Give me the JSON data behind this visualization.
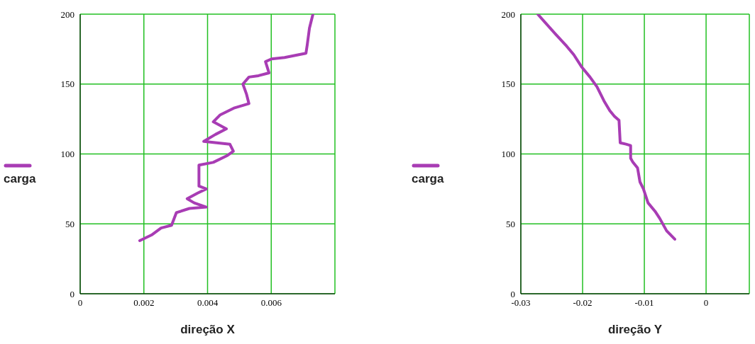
{
  "chart_data": [
    {
      "type": "line",
      "xlabel": "direção X",
      "xlim": [
        0,
        0.008
      ],
      "xticks": [
        0,
        0.002,
        0.004,
        0.006
      ],
      "ylim": [
        0,
        200
      ],
      "yticks": [
        0,
        50,
        100,
        150,
        200
      ],
      "grid": true,
      "legend": "left",
      "series": [
        {
          "name": "carga",
          "color": "#a83cb4",
          "x": [
            0.00187,
            0.00224,
            0.00254,
            0.00287,
            0.00302,
            0.00343,
            0.00396,
            0.00358,
            0.00336,
            0.00369,
            0.00396,
            0.00373,
            0.00373,
            0.00418,
            0.00463,
            0.00481,
            0.0047,
            0.00388,
            0.00425,
            0.00459,
            0.00418,
            0.0044,
            0.00485,
            0.0053,
            0.00522,
            0.00511,
            0.0053,
            0.0056,
            0.00593,
            0.00582,
            0.00601,
            0.00642,
            0.00709,
            0.00713,
            0.0072,
            0.00731
          ],
          "values": [
            38,
            42,
            47,
            49,
            58,
            61,
            62,
            65,
            68,
            72,
            75,
            77,
            92,
            94,
            99,
            102,
            107,
            109,
            114,
            118,
            123,
            128,
            133,
            136,
            143,
            150,
            155,
            156,
            158,
            166,
            168,
            169,
            172,
            178,
            190,
            200
          ]
        }
      ]
    },
    {
      "type": "line",
      "xlabel": "direção Y",
      "xlim": [
        -0.03,
        0.007
      ],
      "xticks": [
        -0.03,
        -0.02,
        -0.01,
        0
      ],
      "ylim": [
        0,
        200
      ],
      "yticks": [
        0,
        50,
        100,
        150,
        200
      ],
      "grid": true,
      "legend": "left",
      "series": [
        {
          "name": "carga",
          "color": "#a83cb4",
          "x": [
            -0.00507,
            -0.00639,
            -0.00752,
            -0.00827,
            -0.0094,
            -0.01015,
            -0.01071,
            -0.0111,
            -0.01184,
            -0.01222,
            -0.01222,
            -0.01297,
            -0.01391,
            -0.0141,
            -0.01485,
            -0.0156,
            -0.01654,
            -0.01767,
            -0.0188,
            -0.02011,
            -0.02143,
            -0.02256,
            -0.02444,
            -0.02726
          ],
          "values": [
            39,
            45,
            54,
            59,
            65,
            75,
            80,
            90,
            94,
            97,
            106,
            107,
            108,
            124,
            127,
            131,
            138,
            148,
            155,
            162,
            171,
            177,
            186,
            200
          ]
        }
      ]
    }
  ]
}
